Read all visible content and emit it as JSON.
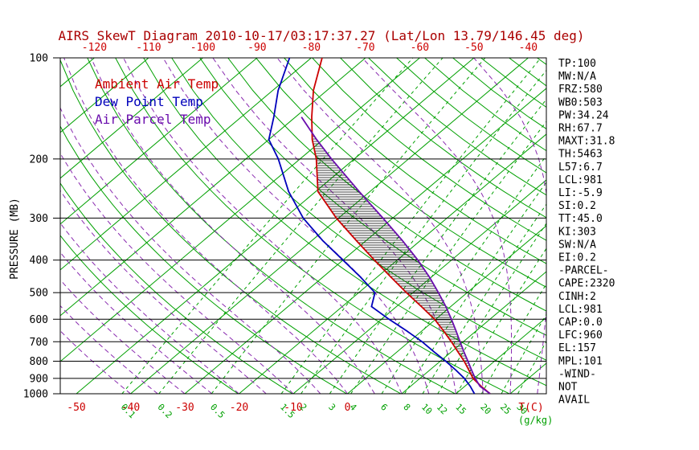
{
  "title": "AIRS SkewT Diagram 2010-10-17/03:17:37.27 (Lat/Lon 13.79/146.45 deg)",
  "legend": [
    {
      "label": "Ambient Air Temp",
      "color": "#cc0000"
    },
    {
      "label": "Dew Point Temp",
      "color": "#0000bb"
    },
    {
      "label": "Air Parcel Temp",
      "color": "#6a0dad"
    }
  ],
  "axes": {
    "y_label": "PRESSURE (MB)",
    "pressure_ticks": [
      100,
      200,
      300,
      400,
      500,
      600,
      700,
      800,
      900,
      1000
    ],
    "top_temp_ticks": [
      -120,
      -110,
      -100,
      -90,
      -80,
      -70,
      -60,
      -50,
      -40
    ],
    "bottom_temp_ticks": [
      -50,
      -40,
      -30,
      -20,
      -10,
      0
    ],
    "bottom_temp_unit": "T(C)",
    "mixing_ratio_ticks": [
      0.1,
      0.2,
      0.5,
      1.5,
      2,
      3,
      4,
      6,
      8,
      10,
      12,
      15,
      20,
      25,
      30
    ],
    "mixing_ratio_unit": "(g/kg)"
  },
  "stats_panel": [
    "TP:100",
    "MW:N/A",
    "FRZ:580",
    "WB0:503",
    "PW:34.24",
    "RH:67.7",
    "MAXT:31.8",
    "TH:5463",
    "L57:6.7",
    "LCL:981",
    "LI:-5.9",
    "SI:0.2",
    "TT:45.0",
    "KI:303",
    "SW:N/A",
    "EI:0.2",
    "-PARCEL-",
    "CAPE:2320",
    "CINH:2",
    "LCL:981",
    "CAP:0.0",
    "LFC:960",
    "EL:157",
    "MPL:101",
    "-WIND-",
    "NOT",
    "AVAIL"
  ],
  "colors": {
    "title": "#aa0000",
    "red": "#cc0000",
    "green": "#00a000",
    "blue": "#0000bb",
    "violet": "#6a0dad",
    "moist_violet": "#8a2bb0",
    "black": "#000000"
  },
  "chart_data": {
    "type": "line",
    "projection": "skew-t log-p",
    "title": "AIRS SkewT Diagram 2010-10-17/03:17:37.27 (Lat/Lon 13.79/146.45 deg)",
    "xlabel": "T(C)",
    "ylabel": "PRESSURE (MB)",
    "y_scale": "log",
    "ylim": [
      1000,
      100
    ],
    "pressure_mb": [
      1000,
      950,
      900,
      850,
      800,
      750,
      700,
      650,
      600,
      550,
      500,
      450,
      400,
      350,
      300,
      250,
      200,
      175,
      150,
      125,
      100
    ],
    "series": [
      {
        "name": "Ambient Air Temp",
        "color": "#cc0000",
        "values_c": [
          26.3,
          23.0,
          19.8,
          17.2,
          14.4,
          11.2,
          7.8,
          4.0,
          -0.2,
          -5.4,
          -11.2,
          -17.4,
          -24.2,
          -31.8,
          -40.4,
          -49.6,
          -57.0,
          -62.0,
          -67.0,
          -72.5,
          -78.0
        ]
      },
      {
        "name": "Dew Point Temp",
        "color": "#0000bb",
        "values_c": [
          23.4,
          21.0,
          18.2,
          14.8,
          11.0,
          6.8,
          2.4,
          -2.8,
          -8.6,
          -14.6,
          -17.0,
          -23.0,
          -30.0,
          -38.0,
          -46.5,
          -55.0,
          -64.0,
          -70.0,
          -74.0,
          -79.0,
          -84.0
        ]
      },
      {
        "name": "Air Parcel Temp",
        "color": "#6a0dad",
        "values_c": [
          26.3,
          22.8,
          20.2,
          17.7,
          15.1,
          12.3,
          9.4,
          6.3,
          2.9,
          -0.9,
          -5.3,
          -10.3,
          -16.2,
          -23.3,
          -31.8,
          -42.0,
          -54.2,
          -61.2,
          -68.9,
          null,
          null
        ]
      }
    ],
    "background": {
      "isotherms_c": {
        "min": -160,
        "max": 50,
        "step": 10
      },
      "dry_adiabats_k": {
        "min": 253,
        "max": 453,
        "step": 10
      },
      "moist_adiabats_c_at_1000mb": {
        "min": -40,
        "max": 40,
        "step": 5
      },
      "mixing_ratio_g_kg": [
        0.1,
        0.2,
        0.5,
        1.5,
        2,
        3,
        4,
        6,
        8,
        10,
        12,
        15,
        20,
        25,
        30
      ],
      "cape_hatch_between": [
        "Ambient Air Temp",
        "Air Parcel Temp"
      ]
    }
  }
}
